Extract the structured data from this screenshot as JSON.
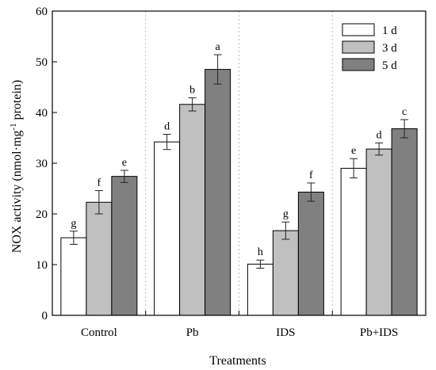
{
  "chart_data": {
    "type": "bar",
    "title": "",
    "xlabel": "Treatments",
    "ylabel_main": "NOX activity (nmol·mg",
    "ylabel_sup": "-1",
    "ylabel_end": " protein)",
    "ylim": [
      0,
      60
    ],
    "yticks": [
      0,
      10,
      20,
      30,
      40,
      50,
      60
    ],
    "categories": [
      "Control",
      "Pb",
      "IDS",
      "Pb+IDS"
    ],
    "grid": "vertical dotted separators between groups",
    "legend_position": "top-right",
    "series": [
      {
        "name": "1 d",
        "color": "#ffffff",
        "values": [
          15.3,
          34.2,
          10.1,
          29.0
        ],
        "errors": [
          1.3,
          1.5,
          0.8,
          1.9
        ],
        "letters": [
          "g",
          "d",
          "h",
          "e"
        ]
      },
      {
        "name": "3 d",
        "color": "#c0c0c0",
        "values": [
          22.3,
          41.6,
          16.7,
          32.8
        ],
        "errors": [
          2.3,
          1.3,
          1.7,
          1.2
        ],
        "letters": [
          "f",
          "b",
          "g",
          "d"
        ]
      },
      {
        "name": "5 d",
        "color": "#808080",
        "values": [
          27.4,
          48.5,
          24.3,
          36.8
        ],
        "errors": [
          1.2,
          2.9,
          1.8,
          1.8
        ],
        "letters": [
          "e",
          "a",
          "f",
          "c"
        ]
      }
    ]
  }
}
